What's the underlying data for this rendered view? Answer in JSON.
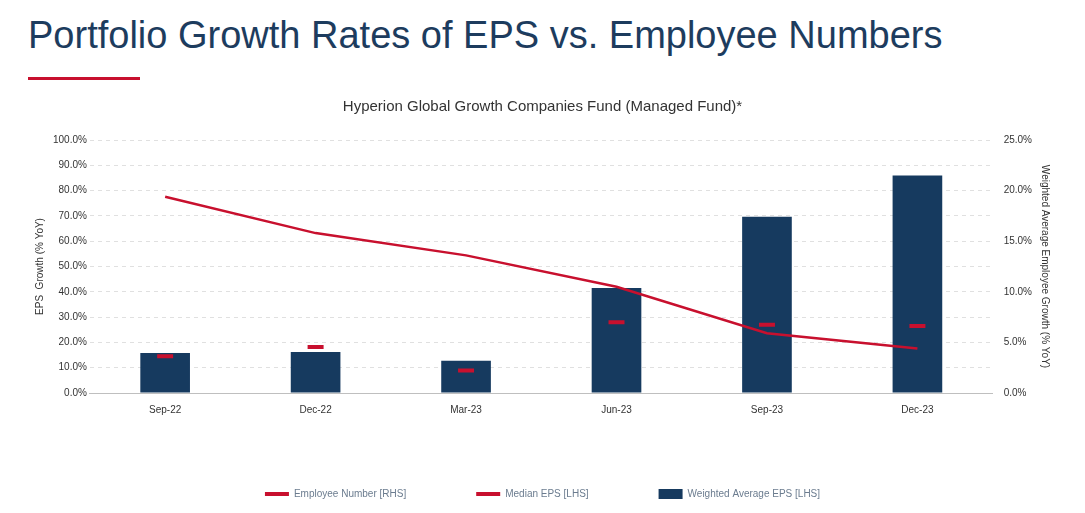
{
  "heading": "Portfolio Growth Rates of EPS vs. Employee Numbers",
  "chart_data": {
    "type": "bar",
    "title": "Hyperion Global Growth Companies Fund (Managed Fund)*",
    "y_label": "EPS  Growth (% YoY)",
    "y2_label": "Weighted Average Employee Growth (% YoY)",
    "categories": [
      "Sep-22",
      "Dec-22",
      "Mar-23",
      "Jun-23",
      "Sep-23",
      "Dec-23"
    ],
    "series": [
      {
        "name": "Weighted Average EPS [LHS]",
        "type": "bar",
        "color": "#163a5f",
        "values": [
          15.8,
          16.2,
          12.7,
          41.5,
          69.7,
          86.0
        ]
      },
      {
        "name": "Median EPS [LHS]",
        "type": "line",
        "marker": "dash",
        "line_style": "none",
        "color": "#c8102e",
        "values": [
          14.5,
          18.2,
          8.9,
          28.0,
          27.0,
          26.5
        ]
      },
      {
        "name": "Employee Number [RHS]",
        "type": "line",
        "marker": "none",
        "line_style": "solid",
        "color": "#c8102e",
        "axis": "y2",
        "values": [
          19.4,
          15.8,
          13.6,
          10.5,
          5.9,
          4.4
        ]
      }
    ],
    "ylim": [
      0,
      100
    ],
    "yticks": [
      {
        "value": 0,
        "label": "0.0%"
      },
      {
        "value": 10,
        "label": "10.0%"
      },
      {
        "value": 20,
        "label": "20.0%"
      },
      {
        "value": 30,
        "label": "30.0%"
      },
      {
        "value": 40,
        "label": "40.0%"
      },
      {
        "value": 50,
        "label": "50.0%"
      },
      {
        "value": 60,
        "label": "60.0%"
      },
      {
        "value": 70,
        "label": "70.0%"
      },
      {
        "value": 80,
        "label": "80.0%"
      },
      {
        "value": 90,
        "label": "90.0%"
      },
      {
        "value": 100,
        "label": "100.0%"
      }
    ],
    "y2lim": [
      0,
      25
    ],
    "y2ticks": [
      {
        "value": 0,
        "label": "0.0%"
      },
      {
        "value": 5,
        "label": "5.0%"
      },
      {
        "value": 10,
        "label": "10.0%"
      },
      {
        "value": 15,
        "label": "15.0%"
      },
      {
        "value": 20,
        "label": "20.0%"
      },
      {
        "value": 25,
        "label": "25.0%"
      }
    ],
    "grid": true,
    "legend": "bottom"
  }
}
